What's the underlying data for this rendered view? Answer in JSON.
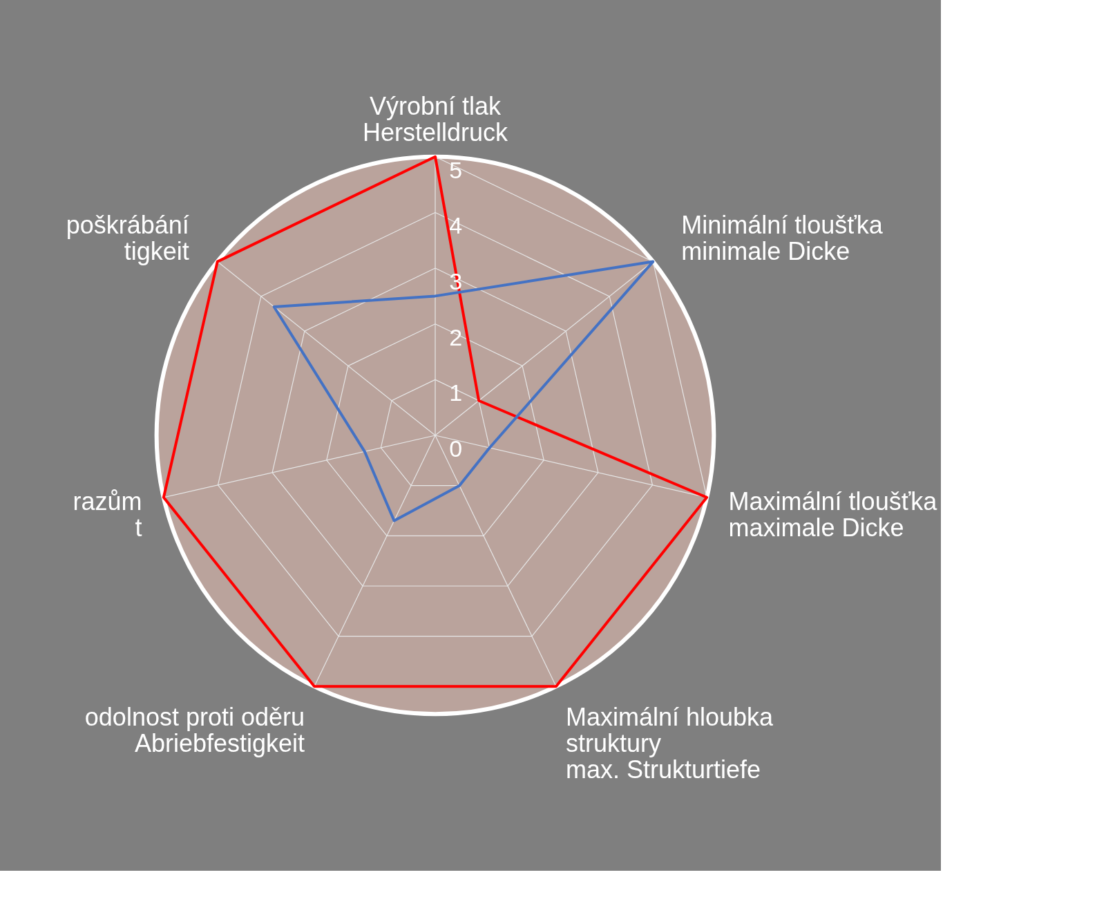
{
  "chart_data": {
    "type": "radar",
    "categories": [
      "Výrobní tlak\nHerstelldruck",
      "Minimální tloušťka\nminimale Dicke",
      "Maximální tloušťka\nmaximale Dicke",
      "Maximální hloubka\nstruktury\nmax. Strukturtiefe",
      "odolnost proti oděru\nAbriebfestigkeit",
      "razům\nt",
      "poškrábání\ntigkeit"
    ],
    "series": [
      {
        "color": "#ff0000",
        "values": [
          5,
          1,
          5,
          5,
          5,
          5,
          5
        ]
      },
      {
        "color": "#4472c4",
        "values": [
          2.5,
          5,
          1,
          1,
          1.7,
          1.3,
          3.7
        ]
      }
    ],
    "ylim": [
      0,
      5
    ],
    "yticks": [
      0,
      1,
      2,
      3,
      4,
      5
    ],
    "grid": true,
    "legend": false
  }
}
